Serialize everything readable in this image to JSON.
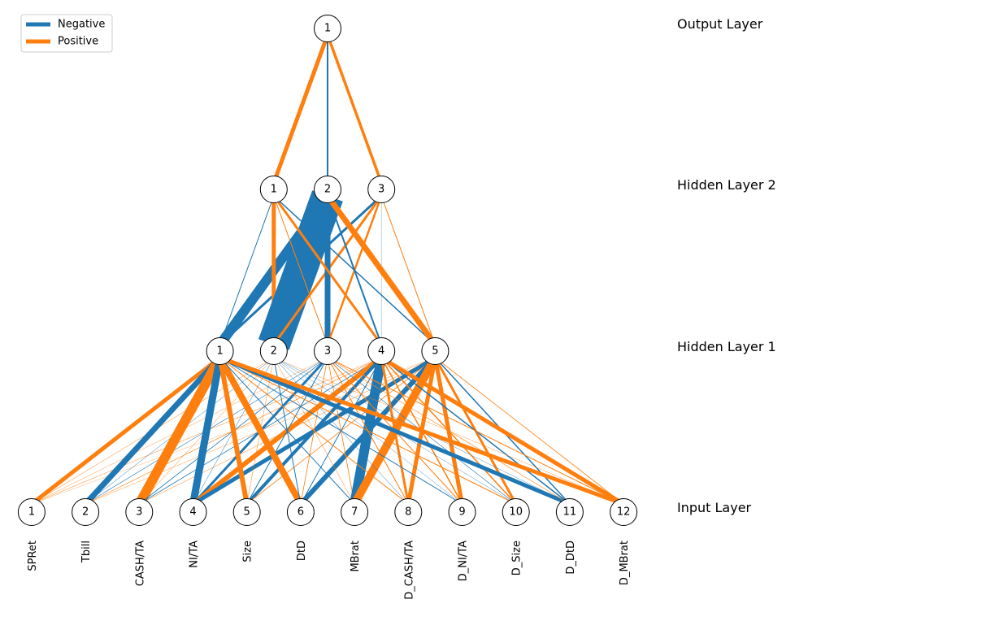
{
  "colors": {
    "negative": "#1f77b4",
    "positive": "#ff7f0e"
  },
  "legend": {
    "negative_label": "Negative",
    "positive_label": "Positive"
  },
  "layers": {
    "output": {
      "label": "Output Layer",
      "nodes": [
        "1"
      ]
    },
    "hidden2": {
      "label": "Hidden Layer 2",
      "nodes": [
        "1",
        "2",
        "3"
      ]
    },
    "hidden1": {
      "label": "Hidden Layer 1",
      "nodes": [
        "1",
        "2",
        "3",
        "4",
        "5"
      ]
    },
    "input": {
      "label": "Input Layer",
      "nodes": [
        "1",
        "2",
        "3",
        "4",
        "5",
        "6",
        "7",
        "8",
        "9",
        "10",
        "11",
        "12"
      ]
    }
  },
  "features": [
    "SPRet",
    "Tbill",
    "CASH/TA",
    "NI/TA",
    "Size",
    "DtD",
    "MBrat",
    "D_CASH/TA",
    "D_NI/TA",
    "D_Size",
    "D_DtD",
    "D_MBrat"
  ],
  "edges": {
    "input_hidden1": [
      [
        1,
        1,
        "pos",
        5
      ],
      [
        1,
        2,
        "pos",
        0.5
      ],
      [
        1,
        3,
        "pos",
        0.4
      ],
      [
        1,
        4,
        "pos",
        0.5
      ],
      [
        1,
        5,
        "pos",
        0.3
      ],
      [
        2,
        1,
        "neg",
        7
      ],
      [
        2,
        2,
        "neg",
        0.5
      ],
      [
        2,
        3,
        "neg",
        0.6
      ],
      [
        2,
        4,
        "pos",
        0.6
      ],
      [
        2,
        5,
        "pos",
        0.4
      ],
      [
        3,
        1,
        "pos",
        12
      ],
      [
        3,
        2,
        "pos",
        0.5
      ],
      [
        3,
        3,
        "neg",
        0.8
      ],
      [
        3,
        4,
        "neg",
        0.8
      ],
      [
        3,
        5,
        "pos",
        0.5
      ],
      [
        4,
        1,
        "neg",
        9
      ],
      [
        4,
        2,
        "neg",
        0.5
      ],
      [
        4,
        3,
        "neg",
        3
      ],
      [
        4,
        4,
        "pos",
        6
      ],
      [
        4,
        5,
        "neg",
        5
      ],
      [
        5,
        1,
        "pos",
        6
      ],
      [
        5,
        2,
        "pos",
        0.5
      ],
      [
        5,
        3,
        "neg",
        1
      ],
      [
        5,
        4,
        "neg",
        4
      ],
      [
        5,
        5,
        "pos",
        0.8
      ],
      [
        6,
        1,
        "pos",
        8
      ],
      [
        6,
        2,
        "neg",
        1
      ],
      [
        6,
        3,
        "pos",
        0.8
      ],
      [
        6,
        4,
        "neg",
        1
      ],
      [
        6,
        5,
        "neg",
        6
      ],
      [
        7,
        1,
        "neg",
        1
      ],
      [
        7,
        2,
        "pos",
        0.5
      ],
      [
        7,
        3,
        "pos",
        0.8
      ],
      [
        7,
        4,
        "neg",
        12
      ],
      [
        7,
        5,
        "pos",
        10
      ],
      [
        8,
        1,
        "pos",
        1
      ],
      [
        8,
        2,
        "neg",
        0.5
      ],
      [
        8,
        3,
        "pos",
        1
      ],
      [
        8,
        4,
        "pos",
        3
      ],
      [
        8,
        5,
        "pos",
        5
      ],
      [
        9,
        1,
        "neg",
        1
      ],
      [
        9,
        2,
        "neg",
        0.4
      ],
      [
        9,
        3,
        "pos",
        1
      ],
      [
        9,
        4,
        "pos",
        1.5
      ],
      [
        9,
        5,
        "pos",
        5
      ],
      [
        10,
        1,
        "pos",
        1
      ],
      [
        10,
        2,
        "neg",
        0.4
      ],
      [
        10,
        3,
        "neg",
        0.6
      ],
      [
        10,
        4,
        "pos",
        1.5
      ],
      [
        10,
        5,
        "pos",
        3
      ],
      [
        11,
        1,
        "neg",
        5
      ],
      [
        11,
        2,
        "neg",
        0.4
      ],
      [
        11,
        3,
        "pos",
        0.6
      ],
      [
        11,
        4,
        "neg",
        1.5
      ],
      [
        11,
        5,
        "neg",
        1.5
      ],
      [
        12,
        1,
        "pos",
        5
      ],
      [
        12,
        2,
        "pos",
        0.4
      ],
      [
        12,
        3,
        "pos",
        1
      ],
      [
        12,
        4,
        "pos",
        5
      ],
      [
        12,
        5,
        "pos",
        0.8
      ]
    ],
    "hidden1_hidden2": [
      [
        1,
        1,
        "neg",
        1
      ],
      [
        1,
        2,
        "neg",
        12
      ],
      [
        1,
        3,
        "neg",
        3
      ],
      [
        2,
        1,
        "pos",
        5
      ],
      [
        2,
        2,
        "neg",
        40
      ],
      [
        2,
        3,
        "pos",
        3
      ],
      [
        3,
        1,
        "pos",
        1
      ],
      [
        3,
        2,
        "neg",
        7
      ],
      [
        3,
        3,
        "pos",
        2.5
      ],
      [
        4,
        1,
        "pos",
        3
      ],
      [
        4,
        2,
        "neg",
        2
      ],
      [
        4,
        3,
        "neg",
        0.3
      ],
      [
        5,
        1,
        "neg",
        1.5
      ],
      [
        5,
        2,
        "pos",
        7
      ],
      [
        5,
        3,
        "pos",
        1
      ]
    ],
    "hidden2_output": [
      [
        1,
        1,
        "pos",
        5
      ],
      [
        2,
        1,
        "neg",
        2
      ],
      [
        3,
        1,
        "pos",
        3.5
      ]
    ]
  }
}
